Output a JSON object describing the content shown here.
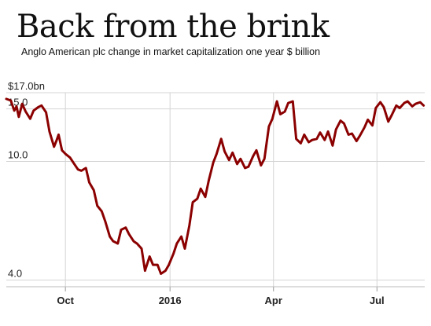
{
  "chart_data": {
    "type": "line",
    "title": "Back from the brink",
    "subtitle": "Anglo American plc change in market capitalization one year $ billion",
    "xlabel": "",
    "ylabel": "",
    "y_scale": "log",
    "ylim": [
      3.8,
      17.0
    ],
    "xlim": [
      "2015-08-10",
      "2016-08-12"
    ],
    "y_ticks": [
      {
        "value": 17.0,
        "label": "$17.0bn"
      },
      {
        "value": 15.0,
        "label": "15.0"
      },
      {
        "value": 10.0,
        "label": "10.0"
      },
      {
        "value": 4.0,
        "label": "4.0"
      }
    ],
    "x_ticks": [
      {
        "date": "2015-10-01",
        "label": "Oct"
      },
      {
        "date": "2016-01-01",
        "label": "2016"
      },
      {
        "date": "2016-04-01",
        "label": "Apr"
      },
      {
        "date": "2016-07-01",
        "label": "Jul"
      }
    ],
    "grid": "vertical and horizontal",
    "legend": "none",
    "line_color": "#8b0000",
    "series": [
      {
        "x": [
          "2015-08-10",
          "2015-08-14",
          "2015-08-17",
          "2015-08-19",
          "2015-08-21",
          "2015-08-24",
          "2015-08-27",
          "2015-08-31",
          "2015-09-03",
          "2015-09-07",
          "2015-09-10",
          "2015-09-14",
          "2015-09-17",
          "2015-09-21",
          "2015-09-23",
          "2015-09-25",
          "2015-09-28",
          "2015-10-01",
          "2015-10-05",
          "2015-10-08",
          "2015-10-12",
          "2015-10-15",
          "2015-10-19",
          "2015-10-22",
          "2015-10-26",
          "2015-10-29",
          "2015-11-02",
          "2015-11-05",
          "2015-11-09",
          "2015-11-12",
          "2015-11-16",
          "2015-11-19",
          "2015-11-23",
          "2015-11-26",
          "2015-11-30",
          "2015-12-03",
          "2015-12-07",
          "2015-12-10",
          "2015-12-14",
          "2015-12-17",
          "2015-12-21",
          "2015-12-24",
          "2015-12-28",
          "2015-12-31",
          "2016-01-04",
          "2016-01-07",
          "2016-01-11",
          "2016-01-14",
          "2016-01-18",
          "2016-01-21",
          "2016-01-25",
          "2016-01-28",
          "2016-02-01",
          "2016-02-04",
          "2016-02-08",
          "2016-02-11",
          "2016-02-15",
          "2016-02-18",
          "2016-02-22",
          "2016-02-25",
          "2016-02-29",
          "2016-03-03",
          "2016-03-07",
          "2016-03-10",
          "2016-03-14",
          "2016-03-17",
          "2016-03-21",
          "2016-03-24",
          "2016-03-28",
          "2016-03-31",
          "2016-04-04",
          "2016-04-07",
          "2016-04-11",
          "2016-04-14",
          "2016-04-18",
          "2016-04-21",
          "2016-04-25",
          "2016-04-28",
          "2016-05-02",
          "2016-05-05",
          "2016-05-09",
          "2016-05-12",
          "2016-05-16",
          "2016-05-19",
          "2016-05-23",
          "2016-05-26",
          "2016-05-30",
          "2016-06-02",
          "2016-06-06",
          "2016-06-09",
          "2016-06-13",
          "2016-06-16",
          "2016-06-20",
          "2016-06-23",
          "2016-06-27",
          "2016-06-30",
          "2016-07-04",
          "2016-07-07",
          "2016-07-11",
          "2016-07-14",
          "2016-07-18",
          "2016-07-21",
          "2016-07-25",
          "2016-07-28",
          "2016-08-01",
          "2016-08-04",
          "2016-08-08",
          "2016-08-11"
        ],
        "y": [
          16.2,
          16.0,
          14.8,
          15.3,
          14.1,
          15.6,
          14.7,
          13.9,
          14.8,
          15.2,
          15.4,
          14.6,
          12.6,
          11.2,
          11.7,
          12.3,
          10.9,
          10.6,
          10.3,
          9.9,
          9.4,
          9.3,
          9.5,
          8.5,
          8.0,
          7.1,
          6.8,
          6.3,
          5.6,
          5.4,
          5.3,
          5.9,
          6.0,
          5.7,
          5.4,
          5.3,
          5.1,
          4.3,
          4.8,
          4.5,
          4.5,
          4.2,
          4.3,
          4.5,
          4.9,
          5.3,
          5.6,
          5.1,
          6.1,
          7.3,
          7.5,
          8.1,
          7.6,
          8.6,
          9.9,
          10.6,
          11.9,
          10.8,
          10.1,
          10.7,
          9.8,
          10.2,
          9.5,
          9.6,
          10.4,
          10.9,
          9.7,
          10.2,
          13.1,
          13.9,
          15.9,
          14.4,
          14.7,
          15.7,
          15.9,
          11.9,
          11.5,
          12.3,
          11.6,
          11.8,
          11.9,
          12.5,
          11.8,
          12.6,
          11.3,
          12.8,
          13.7,
          13.4,
          12.3,
          12.4,
          11.7,
          12.2,
          13.0,
          13.8,
          13.2,
          15.1,
          15.8,
          15.2,
          13.6,
          14.3,
          15.4,
          15.1,
          15.7,
          15.9,
          15.3,
          15.6,
          15.8,
          15.4
        ]
      }
    ]
  }
}
